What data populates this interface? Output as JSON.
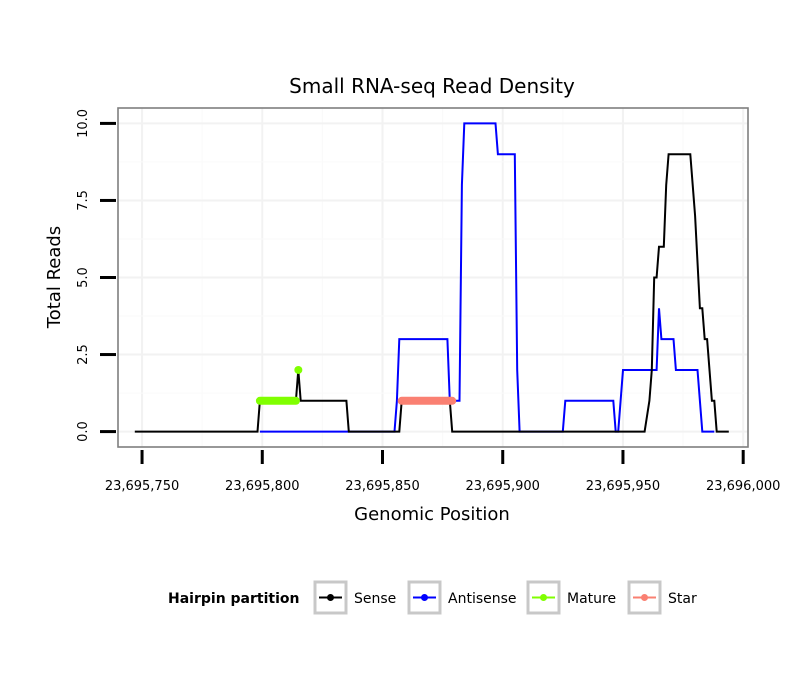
{
  "chart_data": {
    "type": "line",
    "title": "Small RNA-seq Read Density",
    "xlabel": "Genomic Position",
    "ylabel": "Total Reads",
    "xlim": [
      23695740,
      23696002
    ],
    "ylim": [
      -0.5,
      10.5
    ],
    "x_ticks": [
      23695750,
      23695800,
      23695850,
      23695900,
      23695950,
      23696000
    ],
    "x_tick_labels": [
      "23,695,750",
      "23,695,800",
      "23,695,850",
      "23,695,900",
      "23,695,950",
      "23,696,000"
    ],
    "y_ticks": [
      0,
      2.5,
      5,
      7.5,
      10
    ],
    "y_tick_labels": [
      "0.0",
      "2.5",
      "5.0",
      "7.5",
      "10.0"
    ],
    "legend_title": "Hairpin partition",
    "legend_position": "bottom",
    "series": [
      {
        "name": "Sense",
        "color": "#000000",
        "points": [
          [
            23695747,
            0
          ],
          [
            23695798,
            0
          ],
          [
            23695799,
            1
          ],
          [
            23695814,
            1
          ],
          [
            23695815,
            2
          ],
          [
            23695816,
            1
          ],
          [
            23695835,
            1
          ],
          [
            23695836,
            0
          ],
          [
            23695857,
            0
          ],
          [
            23695858,
            1
          ],
          [
            23695878,
            1
          ],
          [
            23695879,
            0
          ],
          [
            23695959,
            0
          ],
          [
            23695961,
            1
          ],
          [
            23695962,
            2
          ],
          [
            23695963,
            5
          ],
          [
            23695964,
            5
          ],
          [
            23695965,
            6
          ],
          [
            23695967,
            6
          ],
          [
            23695968,
            8
          ],
          [
            23695969,
            9
          ],
          [
            23695978,
            9
          ],
          [
            23695979,
            8
          ],
          [
            23695980,
            7
          ],
          [
            23695982,
            4
          ],
          [
            23695983,
            4
          ],
          [
            23695984,
            3
          ],
          [
            23695985,
            3
          ],
          [
            23695986,
            2
          ],
          [
            23695987,
            1
          ],
          [
            23695988,
            1
          ],
          [
            23695989,
            0
          ],
          [
            23695994,
            0
          ]
        ]
      },
      {
        "name": "Antisense",
        "color": "#0000ff",
        "points": [
          [
            23695799,
            0
          ],
          [
            23695834,
            0
          ],
          [
            23695855,
            0
          ],
          [
            23695856,
            1
          ],
          [
            23695857,
            3
          ],
          [
            23695877,
            3
          ],
          [
            23695878,
            1
          ],
          [
            23695882,
            1
          ],
          [
            23695883,
            8
          ],
          [
            23695884,
            10
          ],
          [
            23695897,
            10
          ],
          [
            23695898,
            9
          ],
          [
            23695905,
            9
          ],
          [
            23695906,
            2
          ],
          [
            23695907,
            0
          ],
          [
            23695925,
            0
          ],
          [
            23695926,
            1
          ],
          [
            23695946,
            1
          ],
          [
            23695947,
            0
          ],
          [
            23695948,
            0
          ],
          [
            23695950,
            2
          ],
          [
            23695964,
            2
          ],
          [
            23695965,
            4
          ],
          [
            23695966,
            3
          ],
          [
            23695971,
            3
          ],
          [
            23695972,
            2
          ],
          [
            23695981,
            2
          ],
          [
            23695982,
            1
          ],
          [
            23695983,
            0
          ],
          [
            23695988,
            0
          ]
        ]
      },
      {
        "name": "Mature",
        "color": "#80ff00",
        "points": [
          [
            23695799,
            1
          ],
          [
            23695814,
            1
          ]
        ],
        "peak_point": [
          23695815,
          2
        ]
      },
      {
        "name": "Star",
        "color": "#fa8072",
        "points": [
          [
            23695858,
            1
          ],
          [
            23695879,
            1
          ]
        ]
      }
    ]
  }
}
